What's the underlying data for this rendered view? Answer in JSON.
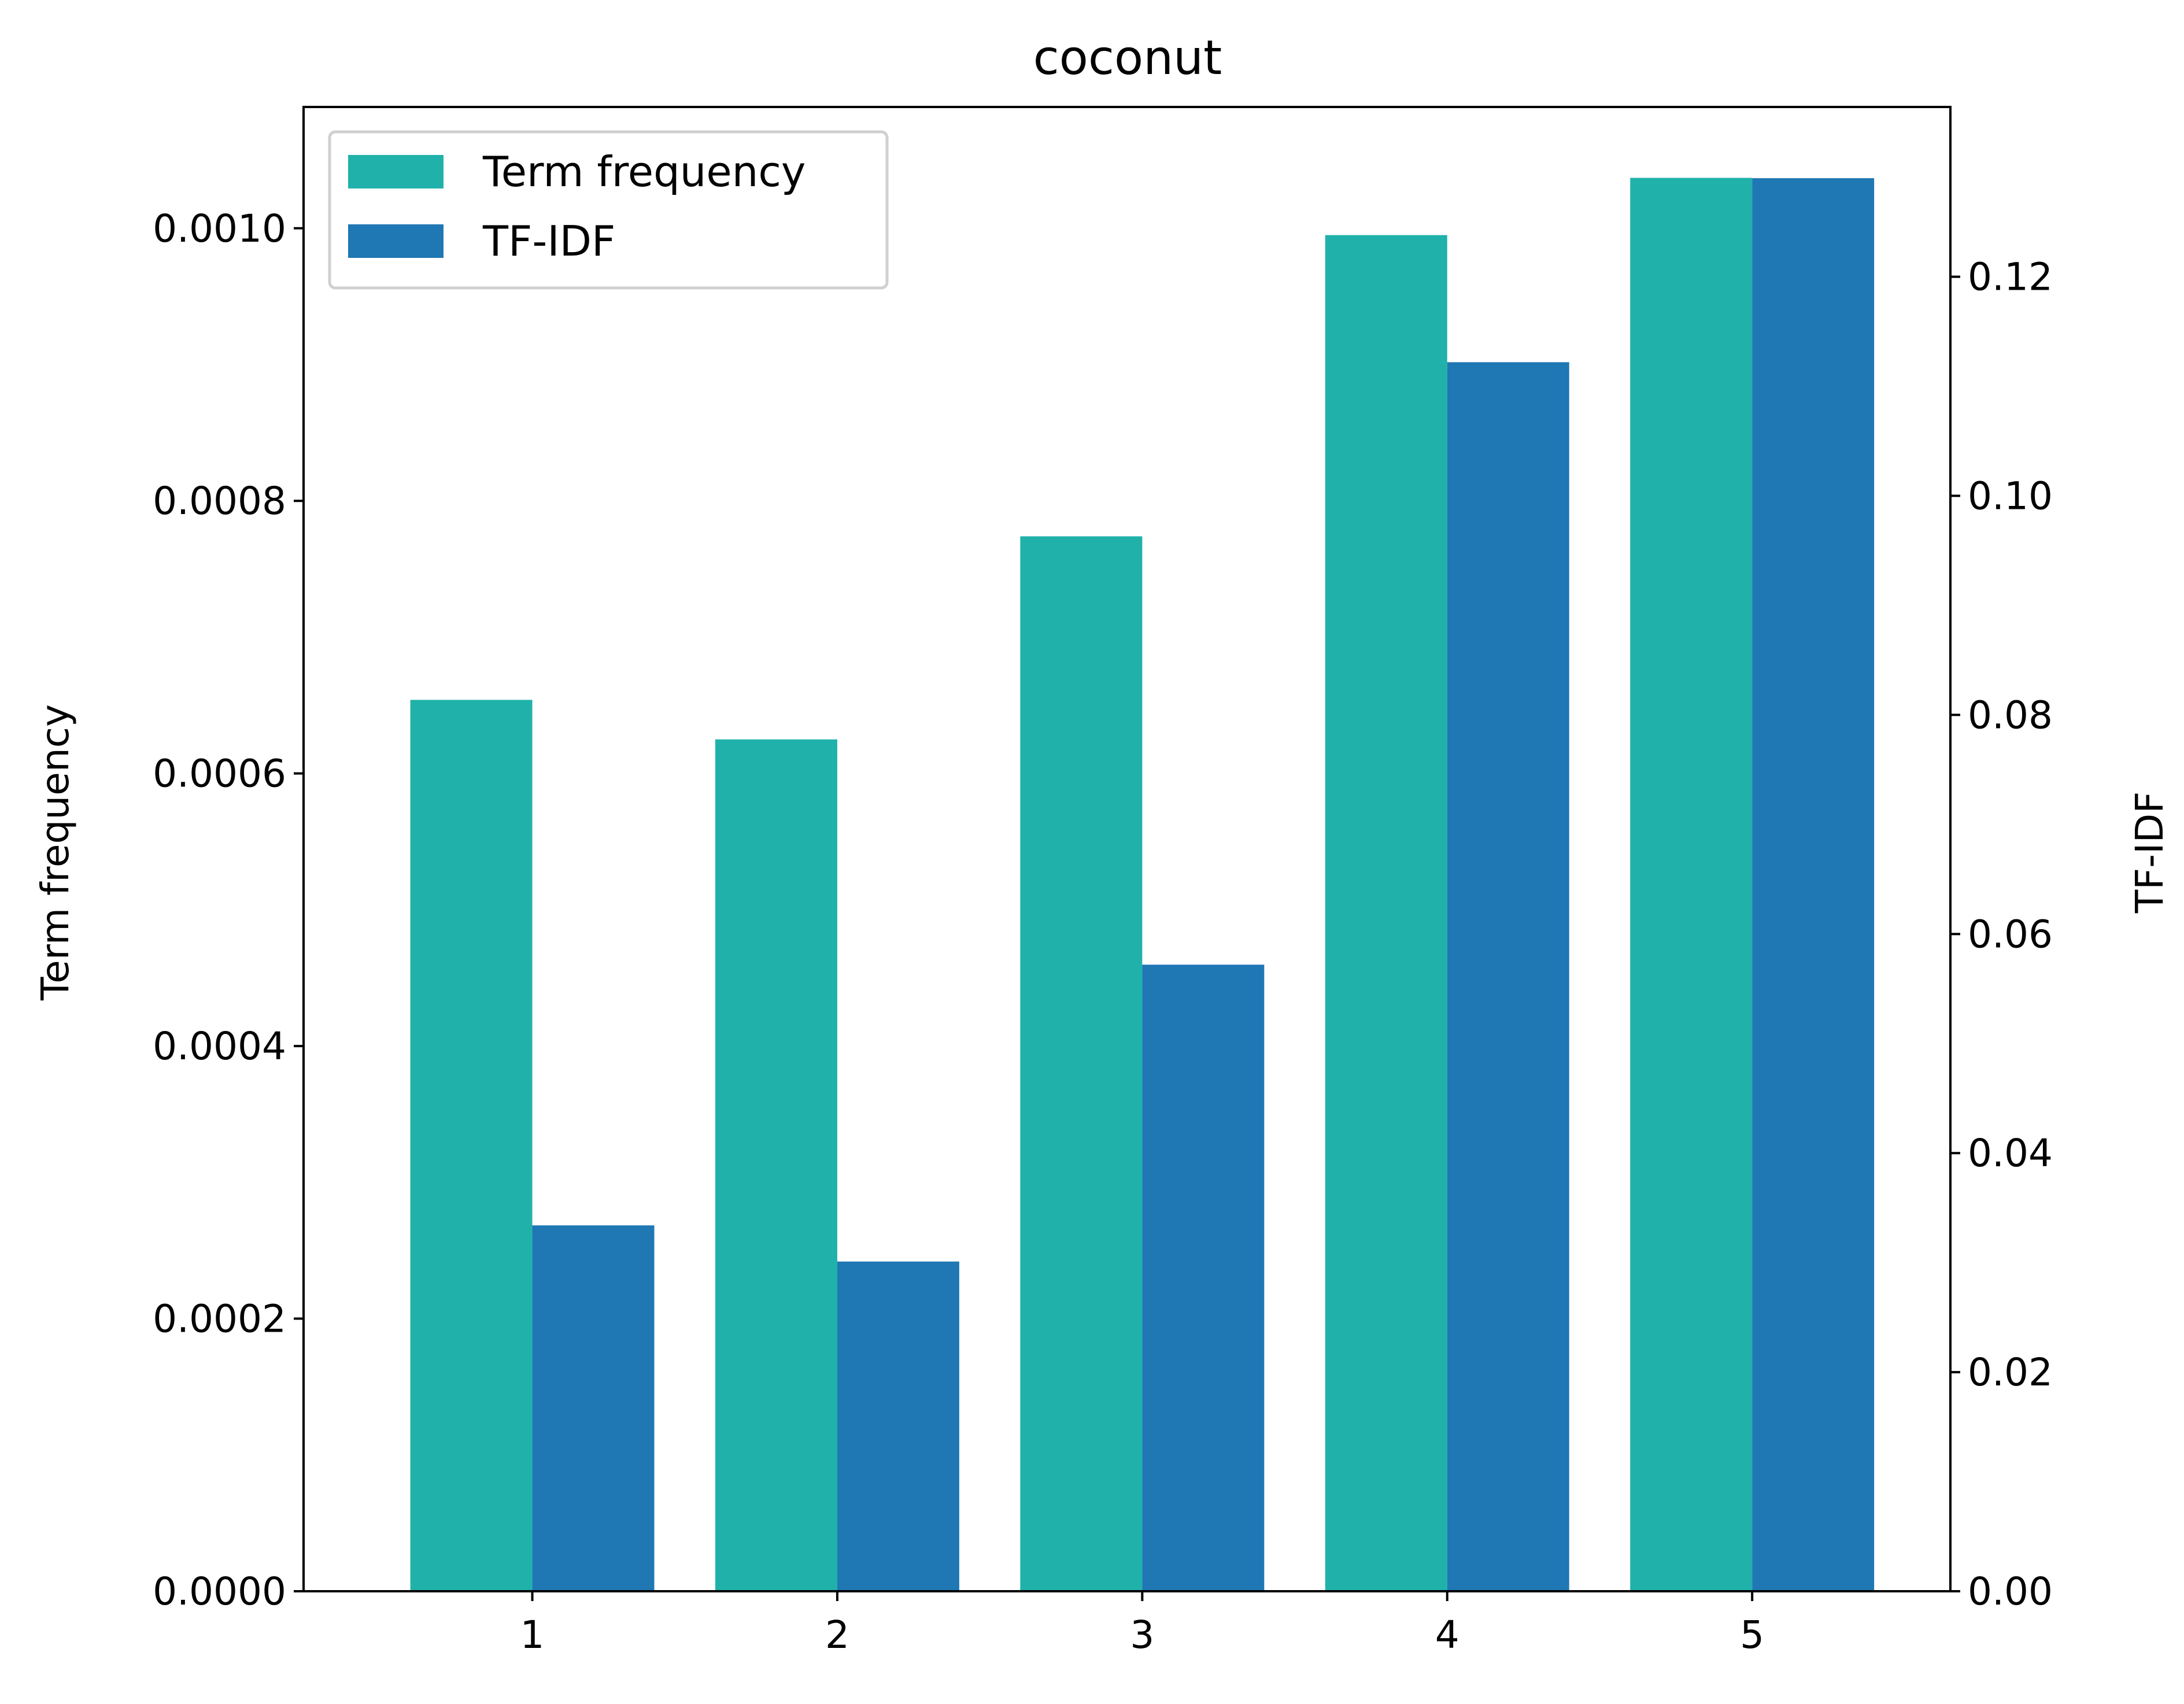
{
  "chart_data": {
    "type": "bar",
    "title": "coconut",
    "xlabel": "",
    "categories": [
      1,
      2,
      3,
      4,
      5
    ],
    "x_ticks": [
      "1",
      "2",
      "3",
      "4",
      "5"
    ],
    "xlim": [
      0.25,
      5.65
    ],
    "series": [
      {
        "name": "Term frequency",
        "axis": "left",
        "color": "#20b2aa",
        "values": [
          0.000654,
          0.000625,
          0.000774,
          0.000995,
          0.001037
        ]
      },
      {
        "name": "TF-IDF",
        "axis": "right",
        "color": "#1f77b4",
        "values": [
          0.0334,
          0.0301,
          0.0572,
          0.1122,
          0.129
        ]
      }
    ],
    "left_axis": {
      "label": "Term frequency",
      "ylim": [
        0,
        0.001089
      ],
      "ticks": [
        0,
        0.0002,
        0.0004,
        0.0006,
        0.0008,
        0.001
      ],
      "tick_labels": [
        "0.0000",
        "0.0002",
        "0.0004",
        "0.0006",
        "0.0008",
        "0.0010"
      ]
    },
    "right_axis": {
      "label": "TF-IDF",
      "ylim": [
        0,
        0.1355
      ],
      "ticks": [
        0,
        0.02,
        0.04,
        0.06,
        0.08,
        0.1,
        0.12
      ],
      "tick_labels": [
        "0.00",
        "0.02",
        "0.04",
        "0.06",
        "0.08",
        "0.10",
        "0.12"
      ]
    },
    "legend": {
      "position": "top-left",
      "entries": [
        "Term frequency",
        "TF-IDF"
      ]
    },
    "grid": false
  }
}
